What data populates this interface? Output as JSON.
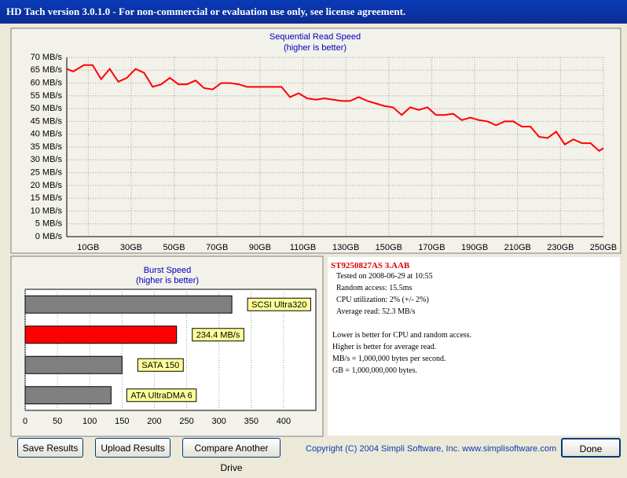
{
  "window": {
    "title": "HD Tach version 3.0.1.0  - For non-commercial or evaluation use only, see license agreement."
  },
  "chart_data": [
    {
      "type": "line",
      "title": "Sequential Read Speed",
      "subtitle": "(higher is better)",
      "x": [
        0,
        3,
        8,
        12,
        16,
        20,
        24,
        28,
        32,
        36,
        40,
        44,
        48,
        52,
        56,
        60,
        64,
        68,
        72,
        76,
        80,
        84,
        88,
        92,
        96,
        100,
        104,
        108,
        112,
        116,
        120,
        124,
        128,
        132,
        136,
        140,
        144,
        148,
        152,
        156,
        160,
        164,
        168,
        172,
        176,
        180,
        184,
        188,
        192,
        196,
        200,
        204,
        208,
        212,
        216,
        220,
        224,
        228,
        232,
        236,
        240,
        244,
        248,
        250
      ],
      "series": [
        {
          "name": "Read speed",
          "color": "#ff0000",
          "values": [
            65.5,
            64.5,
            67,
            67,
            61.5,
            65.5,
            60.5,
            62,
            65.5,
            64,
            58.5,
            59.5,
            62,
            59.5,
            59.5,
            61,
            58,
            57.5,
            60,
            60,
            59.5,
            58.5,
            58.5,
            58.5,
            58.5,
            58.5,
            54.5,
            56,
            54,
            53.5,
            54,
            53.5,
            53,
            53,
            54.5,
            53,
            52,
            51,
            50.5,
            47.5,
            50.5,
            49.5,
            50.5,
            47.5,
            47.5,
            48,
            45.5,
            46.5,
            45.5,
            45,
            43.5,
            45,
            45,
            43,
            43,
            39,
            38.5,
            41,
            36,
            38,
            36.5,
            36.5,
            33.5,
            34.5
          ]
        }
      ],
      "xlim": [
        0,
        250
      ],
      "xticks": [
        {
          "value": 10,
          "label": "10GB"
        },
        {
          "value": 30,
          "label": "30GB"
        },
        {
          "value": 50,
          "label": "50GB"
        },
        {
          "value": 70,
          "label": "70GB"
        },
        {
          "value": 90,
          "label": "90GB"
        },
        {
          "value": 110,
          "label": "110GB"
        },
        {
          "value": 130,
          "label": "130GB"
        },
        {
          "value": 150,
          "label": "150GB"
        },
        {
          "value": 170,
          "label": "170GB"
        },
        {
          "value": 190,
          "label": "190GB"
        },
        {
          "value": 210,
          "label": "210GB"
        },
        {
          "value": 230,
          "label": "230GB"
        },
        {
          "value": 250,
          "label": "250GB"
        }
      ],
      "ylim": [
        0,
        70
      ],
      "yticks": [
        {
          "value": 0,
          "label": "0 MB/s"
        },
        {
          "value": 5,
          "label": "5 MB/s"
        },
        {
          "value": 10,
          "label": "10 MB/s"
        },
        {
          "value": 15,
          "label": "15 MB/s"
        },
        {
          "value": 20,
          "label": "20 MB/s"
        },
        {
          "value": 25,
          "label": "25 MB/s"
        },
        {
          "value": 30,
          "label": "30 MB/s"
        },
        {
          "value": 35,
          "label": "35 MB/s"
        },
        {
          "value": 40,
          "label": "40 MB/s"
        },
        {
          "value": 45,
          "label": "45 MB/s"
        },
        {
          "value": 50,
          "label": "50 MB/s"
        },
        {
          "value": 55,
          "label": "55 MB/s"
        },
        {
          "value": 60,
          "label": "60 MB/s"
        },
        {
          "value": 65,
          "label": "65 MB/s"
        },
        {
          "value": 70,
          "label": "70 MB/s"
        }
      ],
      "grid": true
    },
    {
      "type": "hbar",
      "title": "Burst Speed",
      "subtitle": "(higher is better)",
      "categories": [
        "SCSI Ultra320",
        null,
        "SATA 150",
        "ATA UltraDMA 6"
      ],
      "values": [
        320,
        234.4,
        150,
        133
      ],
      "value_labels": [
        null,
        "234.4 MB/s",
        null,
        null
      ],
      "colors": [
        "#808080",
        "#ff0000",
        "#808080",
        "#808080"
      ],
      "xlim": [
        0,
        450
      ],
      "xticks": [
        0,
        50,
        100,
        150,
        200,
        250,
        300,
        350,
        400
      ],
      "grid": true
    }
  ],
  "info": {
    "heading": "ST9250827AS 3.AAB",
    "stats": [
      "Tested on 2008-06-29 at 10:55",
      "Random access: 15.5ms",
      "CPU utilization: 2% (+/- 2%)",
      "Average read: 52.3 MB/s"
    ],
    "notes": [
      "Lower is better for CPU and random access.",
      "Higher is better for average read.",
      "MB/s = 1,000,000 bytes per second.",
      "GB = 1,000,000,000 bytes."
    ]
  },
  "buttons": [
    "Save Results",
    "Upload Results",
    "Compare Another Drive",
    "Done"
  ],
  "copyright": "Copyright (C) 2004 Simpli Software, Inc. www.simplisoftware.com"
}
